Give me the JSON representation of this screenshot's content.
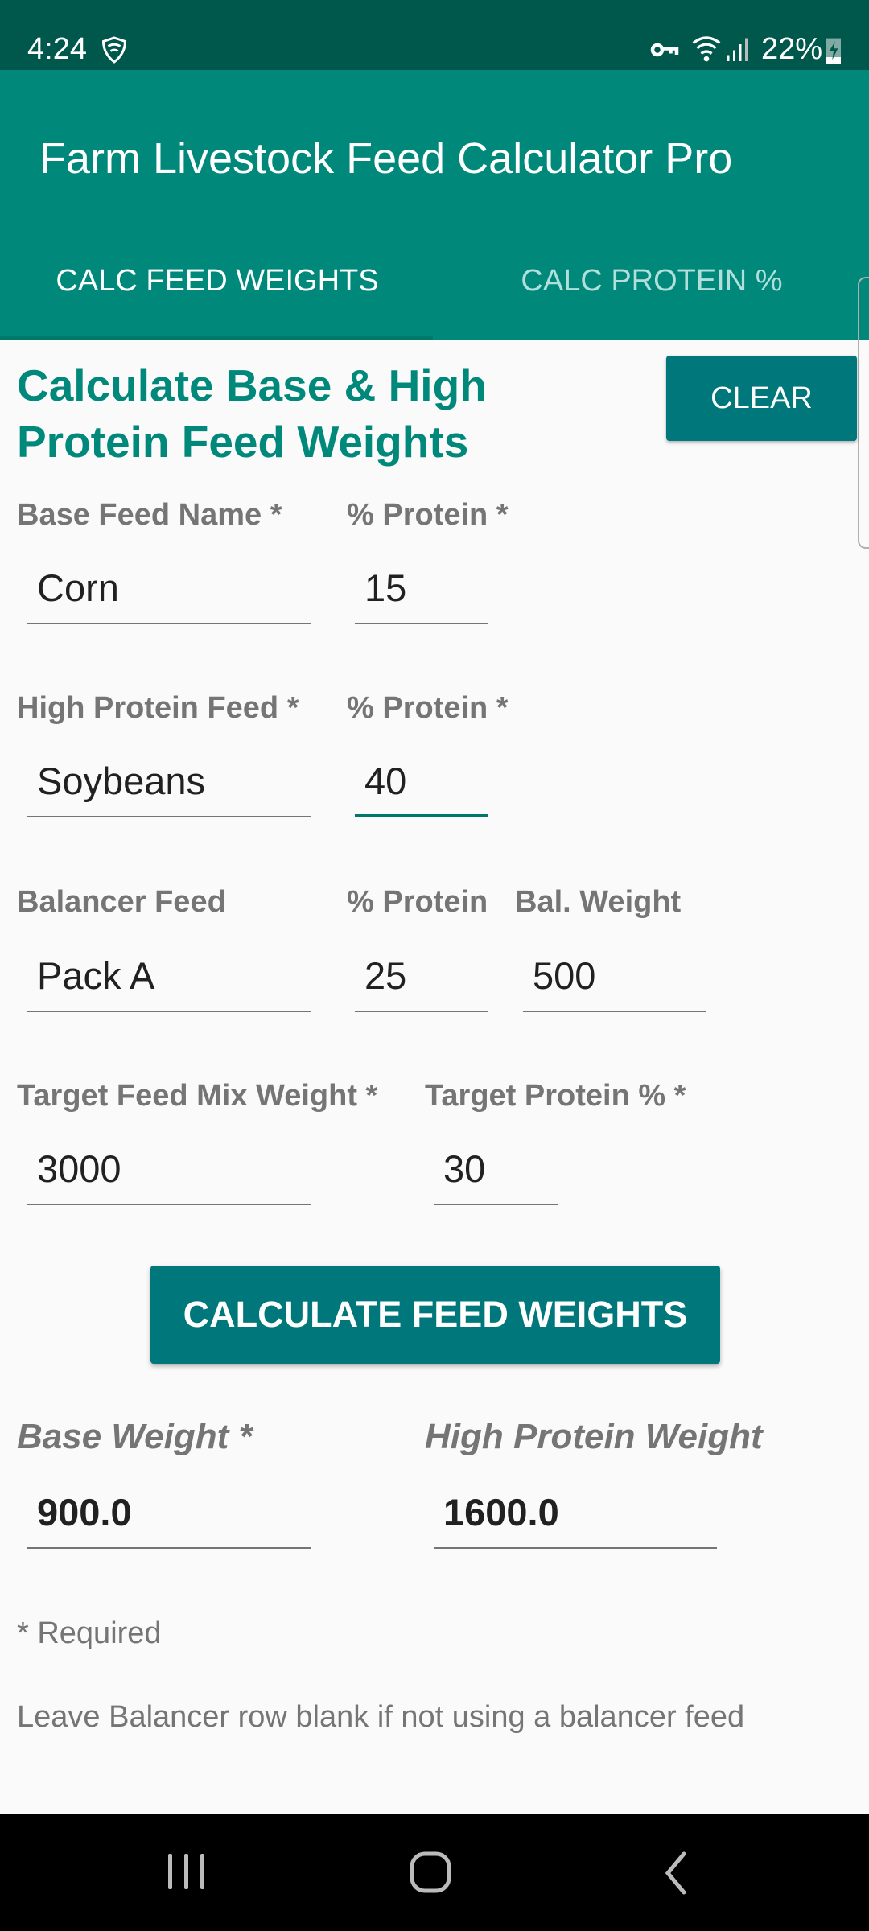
{
  "status_bar": {
    "time": "4:24",
    "battery": "22%",
    "icons": [
      "shield-wifi-icon",
      "key-icon",
      "wifi-icon",
      "signal-icon",
      "battery-charging-icon"
    ]
  },
  "app": {
    "title": "Farm Livestock Feed Calculator Pro"
  },
  "tabs": [
    {
      "label": "CALC FEED WEIGHTS",
      "selected": true
    },
    {
      "label": "CALC PROTEIN %",
      "selected": false
    }
  ],
  "colors": {
    "primary": "#00897b",
    "primary_dark": "#00574b",
    "button": "#00777a"
  },
  "form": {
    "heading_line1": "Calculate Base & High",
    "heading_line2": "Protein Feed Weights",
    "clear_label": "CLEAR",
    "base_feed_name_label": "Base Feed Name *",
    "base_protein_label": "% Protein *",
    "base_feed_name": "Corn",
    "base_protein": "15",
    "high_feed_label": "High Protein Feed *",
    "high_protein_label": "% Protein *",
    "high_feed_name": "Soybeans",
    "high_protein": "40",
    "balancer_feed_label": "Balancer Feed",
    "balancer_protein_label": "% Protein",
    "balancer_weight_label": "Bal. Weight",
    "balancer_feed_name": "Pack A",
    "balancer_protein": "25",
    "balancer_weight": "500",
    "target_weight_label": "Target Feed Mix Weight *",
    "target_protein_label": "Target Protein % *",
    "target_weight": "3000",
    "target_protein": "30",
    "calculate_label": "CALCULATE FEED WEIGHTS",
    "base_weight_label": "Base Weight *",
    "high_weight_label": "High Protein Weight",
    "base_weight": "900.0",
    "high_weight": "1600.0",
    "required_note": "* Required",
    "balancer_note": "Leave Balancer row blank if not using a balancer feed"
  }
}
